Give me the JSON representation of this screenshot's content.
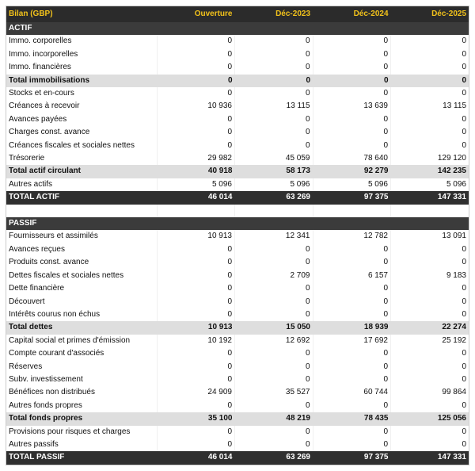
{
  "table": {
    "header": [
      "Bilan (GBP)",
      "Ouverture",
      "Déc-2023",
      "Déc-2024",
      "Déc-2025"
    ],
    "actif": {
      "title": "ACTIF",
      "groups": [
        {
          "rows": [
            [
              "Immo. corporelles",
              "0",
              "0",
              "0",
              "0"
            ],
            [
              "Immo. incorporelles",
              "0",
              "0",
              "0",
              "0"
            ],
            [
              "Immo. financières",
              "0",
              "0",
              "0",
              "0"
            ]
          ],
          "subtotal": [
            "Total immobilisations",
            "0",
            "0",
            "0",
            "0"
          ]
        },
        {
          "rows": [
            [
              "Stocks et en-cours",
              "0",
              "0",
              "0",
              "0"
            ],
            [
              "Créances à recevoir",
              "10 936",
              "13 115",
              "13 639",
              "13 115"
            ],
            [
              "Avances payées",
              "0",
              "0",
              "0",
              "0"
            ],
            [
              "Charges const. avance",
              "0",
              "0",
              "0",
              "0"
            ],
            [
              "Créances fiscales et sociales nettes",
              "0",
              "0",
              "0",
              "0"
            ],
            [
              "Trésorerie",
              "29 982",
              "45 059",
              "78 640",
              "129 120"
            ]
          ],
          "subtotal": [
            "Total actif circulant",
            "40 918",
            "58 173",
            "92 279",
            "142 235"
          ]
        }
      ],
      "other_rows": [
        [
          "Autres actifs",
          "5 096",
          "5 096",
          "5 096",
          "5 096"
        ]
      ],
      "total": [
        "TOTAL ACTIF",
        "46 014",
        "63 269",
        "97 375",
        "147 331"
      ]
    },
    "passif": {
      "title": "PASSIF",
      "groups": [
        {
          "rows": [
            [
              "Fournisseurs et assimilés",
              "10 913",
              "12 341",
              "12 782",
              "13 091"
            ],
            [
              "Avances reçues",
              "0",
              "0",
              "0",
              "0"
            ],
            [
              "Produits const. avance",
              "0",
              "0",
              "0",
              "0"
            ],
            [
              "Dettes fiscales et sociales nettes",
              "0",
              "2 709",
              "6 157",
              "9 183"
            ],
            [
              "Dette financière",
              "0",
              "0",
              "0",
              "0"
            ],
            [
              "Découvert",
              "0",
              "0",
              "0",
              "0"
            ],
            [
              "Intérêts courus non échus",
              "0",
              "0",
              "0",
              "0"
            ]
          ],
          "subtotal": [
            "Total dettes",
            "10 913",
            "15 050",
            "18 939",
            "22 274"
          ]
        },
        {
          "rows": [
            [
              "Capital social et primes d'émission",
              "10 192",
              "12 692",
              "17 692",
              "25 192"
            ],
            [
              "Compte courant d'associés",
              "0",
              "0",
              "0",
              "0"
            ],
            [
              "Réserves",
              "0",
              "0",
              "0",
              "0"
            ],
            [
              "Subv. investissement",
              "0",
              "0",
              "0",
              "0"
            ],
            [
              "Bénéfices non distribués",
              "24 909",
              "35 527",
              "60 744",
              "99 864"
            ],
            [
              "Autres fonds propres",
              "0",
              "0",
              "0",
              "0"
            ]
          ],
          "subtotal": [
            "Total fonds propres",
            "35 100",
            "48 219",
            "78 435",
            "125 056"
          ]
        }
      ],
      "other_rows": [
        [
          "Provisions pour risques et charges",
          "0",
          "0",
          "0",
          "0"
        ],
        [
          "Autres passifs",
          "0",
          "0",
          "0",
          "0"
        ]
      ],
      "total": [
        "TOTAL PASSIF",
        "46 014",
        "63 269",
        "97 375",
        "147 331"
      ]
    }
  }
}
